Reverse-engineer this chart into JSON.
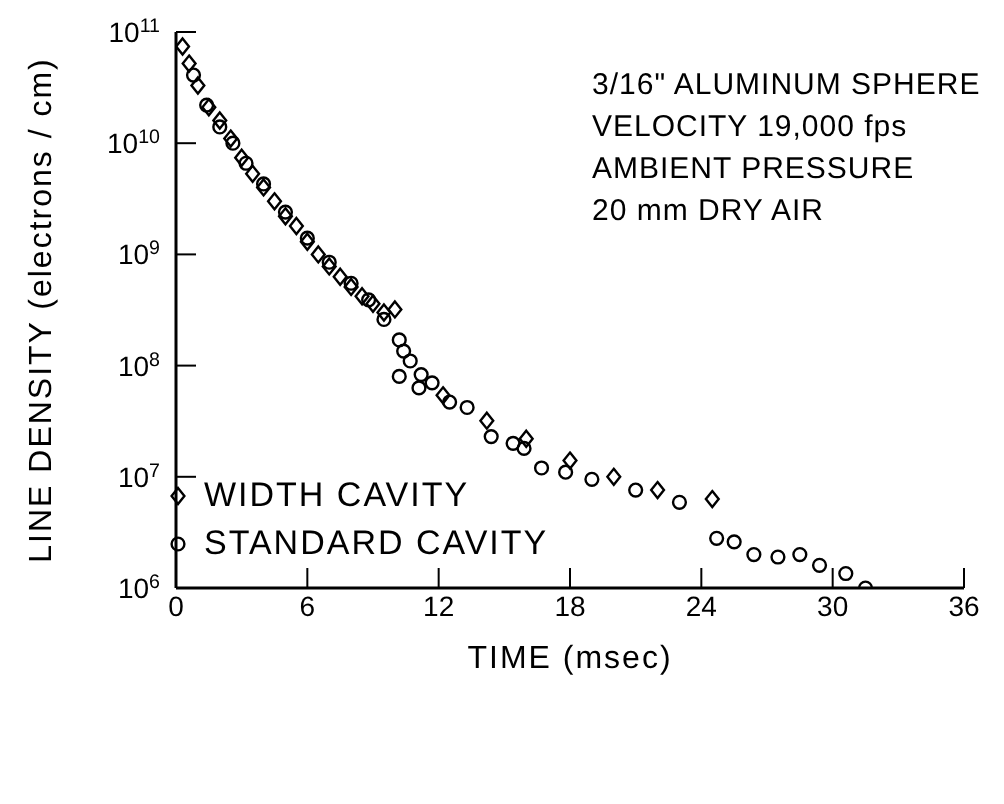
{
  "chart_data": {
    "type": "scatter",
    "xlabel": "TIME (msec)",
    "ylabel": "LINE DENSITY (electrons / cm)",
    "log": "y",
    "grid": false,
    "legend": "bottom left",
    "xlim": [
      0,
      36
    ],
    "xticks": [
      0,
      6,
      12,
      18,
      24,
      30,
      36
    ],
    "ylim": [
      1000000,
      100000000000
    ],
    "yticks": [
      {
        "value": 1000000,
        "label": "10$^{6}$"
      },
      {
        "value": 10000000,
        "label": "10$^{7}$"
      },
      {
        "value": 100000000,
        "label": "10$^{8}$"
      },
      {
        "value": 1000000000,
        "label": "10$^{9}$"
      },
      {
        "value": 10000000000,
        "label": "10$^{10}$"
      },
      {
        "value": 100000000000,
        "label": "10$^{11}$"
      }
    ],
    "annotations": [
      "3/16\" ALUMINUM SPHERE",
      "VELOCITY 19,000 fps",
      "AMBIENT PRESSURE",
      "20 mm DRY AIR"
    ],
    "series": [
      {
        "name": "WIDTH CAVITY",
        "color": "#000000",
        "marker": "diamond",
        "x": [
          0.3,
          0.6,
          1.0,
          1.5,
          2.0,
          2.5,
          3.0,
          3.5,
          4.0,
          4.5,
          5.0,
          5.5,
          6.0,
          6.5,
          7.0,
          7.5,
          8.0,
          8.5,
          9.0,
          9.5,
          10.0,
          12.2,
          14.2,
          16.0,
          18.0,
          20.0,
          22.0,
          24.5
        ],
        "values": [
          74000000000,
          52000000000,
          33000000000,
          21000000000,
          16000000000,
          11000000000,
          7400000000,
          5300000000,
          4000000000,
          3000000000,
          2200000000,
          1800000000,
          1300000000,
          1000000000,
          780000000,
          630000000,
          510000000,
          420000000,
          360000000,
          300000000,
          320000000,
          54000000,
          32000000,
          22000000,
          14000000,
          10000000,
          7600000,
          6300000
        ]
      },
      {
        "name": "STANDARD CAVITY",
        "color": "#000000",
        "marker": "circle",
        "x": [
          0.8,
          1.4,
          2.0,
          2.6,
          3.2,
          4.0,
          5.0,
          6.0,
          7.0,
          8.0,
          8.8,
          9.5,
          10.2,
          10.4,
          10.7,
          10.2,
          11.2,
          11.1,
          11.7,
          12.5,
          13.3,
          14.4,
          15.4,
          15.9,
          16.7,
          17.8,
          19.0,
          21.0,
          23.0,
          24.7,
          25.5,
          26.4,
          27.5,
          28.5,
          29.4,
          30.6,
          31.5
        ],
        "values": [
          41000000000,
          22000000000,
          14000000000,
          10000000000,
          6600000000,
          4300000000,
          2400000000,
          1400000000,
          850000000,
          550000000,
          390000000,
          260000000,
          170000000,
          135000000,
          110000000,
          80000000,
          83000000,
          63000000,
          70000000,
          47000000,
          42000000,
          23000000,
          20000000,
          18000000,
          12000000,
          11000000,
          9500000,
          7600000,
          5900000,
          2800000,
          2600000,
          2000000,
          1900000,
          2000000,
          1600000,
          1350000,
          1000000
        ]
      }
    ]
  }
}
